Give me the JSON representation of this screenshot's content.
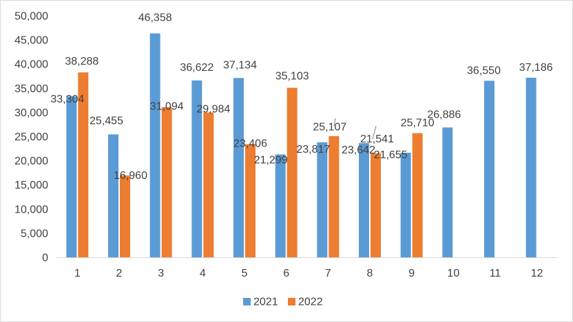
{
  "chart_data": {
    "type": "bar",
    "title": "",
    "xlabel": "",
    "ylabel": "",
    "categories": [
      "1",
      "2",
      "3",
      "4",
      "5",
      "6",
      "7",
      "8",
      "9",
      "10",
      "11",
      "12"
    ],
    "series": [
      {
        "name": "2021",
        "color": "#5b9bd5",
        "values": [
          33304,
          25455,
          46358,
          36622,
          37134,
          21299,
          23817,
          23642,
          21655,
          26886,
          36550,
          37186
        ],
        "labels": [
          "33,304",
          "25,455",
          "46,358",
          "36,622",
          "37,134",
          "21,299",
          "23,817",
          "23,642",
          "21,655",
          "26,886",
          "36,550",
          "37,186"
        ]
      },
      {
        "name": "2022",
        "color": "#ed7d31",
        "values": [
          38288,
          16960,
          31094,
          29984,
          23406,
          35103,
          25107,
          21541,
          25710,
          null,
          null,
          null
        ],
        "labels": [
          "38,288",
          "16,960",
          "31,094",
          "29,984",
          "23,406",
          "35,103",
          "25,107",
          "21,541",
          "25,710",
          "",
          "",
          ""
        ]
      }
    ],
    "ylim": [
      0,
      50000
    ],
    "yticks": [
      0,
      5000,
      10000,
      15000,
      20000,
      25000,
      30000,
      35000,
      40000,
      45000,
      50000
    ],
    "ytick_labels": [
      "0",
      "5,000",
      "10,000",
      "15,000",
      "20,000",
      "25,000",
      "30,000",
      "35,000",
      "40,000",
      "45,000",
      "50,000"
    ],
    "grid": false,
    "legend_position": "bottom"
  }
}
